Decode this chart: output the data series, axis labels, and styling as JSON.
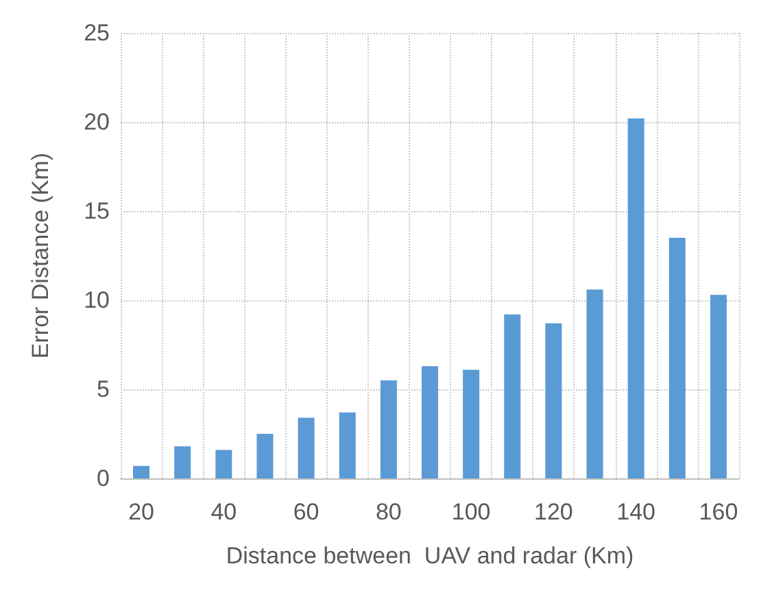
{
  "chart_data": {
    "type": "bar",
    "xlabel": "Distance between  UAV and radar (Km)",
    "ylabel": "Error Distance (Km)",
    "categories": [
      "20",
      null,
      "40",
      null,
      "60",
      null,
      "80",
      null,
      "100",
      null,
      "120",
      null,
      "140",
      null,
      "160"
    ],
    "values": [
      0.7,
      1.8,
      1.6,
      2.5,
      3.4,
      3.7,
      5.5,
      6.3,
      6.1,
      9.2,
      8.7,
      10.6,
      20.2,
      13.5,
      10.3
    ],
    "color": "#5b9bd5",
    "ylim": [
      0,
      25
    ],
    "yticks": [
      0,
      5,
      10,
      15,
      20,
      25
    ],
    "grid": true
  }
}
